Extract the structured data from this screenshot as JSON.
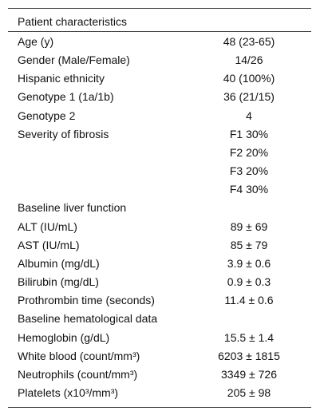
{
  "table": {
    "header": "Patient characteristics",
    "rows": [
      {
        "label": "Age (y)",
        "value": "48 (23-65)"
      },
      {
        "label": "Gender (Male/Female)",
        "value": "14/26"
      },
      {
        "label": "Hispanic ethnicity",
        "value": "40 (100%)"
      },
      {
        "label": "Genotype 1 (1a/1b)",
        "value": "36 (21/15)"
      },
      {
        "label": "Genotype 2",
        "value": "4"
      },
      {
        "label": "Severity of fibrosis",
        "value": "F1 30%"
      },
      {
        "value": "F2 20%"
      },
      {
        "value": "F3 20%"
      },
      {
        "value": "F4 30%"
      },
      {
        "section": "Baseline liver function"
      },
      {
        "label": "ALT (IU/mL)",
        "value": "89 ± 69"
      },
      {
        "label": "AST (IU/mL)",
        "value": "85 ± 79"
      },
      {
        "label": "Albumin (mg/dL)",
        "value": "3.9 ± 0.6"
      },
      {
        "label": "Bilirubin (mg/dL)",
        "value": "0.9 ± 0.3"
      },
      {
        "label": "Prothrombin time (seconds)",
        "value": "11.4 ± 0.6"
      },
      {
        "section": "Baseline hematological data"
      },
      {
        "label": "Hemoglobin (g/dL)",
        "value": "15.5 ± 1.4"
      },
      {
        "label": "White blood (count/mm³)",
        "value": "6203 ± 1815"
      },
      {
        "label": "Neutrophils (count/mm³)",
        "value": "3349 ± 726"
      },
      {
        "label": "Platelets (x10³/mm³)",
        "value": "205 ± 98"
      }
    ]
  }
}
